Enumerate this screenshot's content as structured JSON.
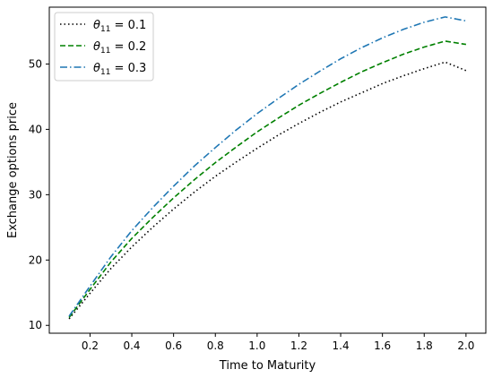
{
  "chart_data": {
    "type": "line",
    "xlabel": "Time to Maturity",
    "ylabel": "Exchange options price",
    "xlim": [
      0.005,
      2.095
    ],
    "ylim": [
      8.8,
      58.7
    ],
    "xticks": [
      "0.2",
      "0.4",
      "0.6",
      "0.8",
      "1.0",
      "1.2",
      "1.4",
      "1.6",
      "1.8",
      "2.0"
    ],
    "yticks": [
      "10",
      "20",
      "30",
      "40",
      "50"
    ],
    "grid": false,
    "legend_position": "top-left",
    "x": [
      0.1,
      0.2,
      0.3,
      0.4,
      0.5,
      0.6,
      0.7,
      0.8,
      0.9,
      1.0,
      1.1,
      1.2,
      1.3,
      1.4,
      1.5,
      1.6,
      1.7,
      1.8,
      1.9,
      2.0
    ],
    "series": [
      {
        "name_main": "θ",
        "name_sub": "11",
        "name_value": " = 0.1",
        "style": "dotted",
        "color": "#000000",
        "values": [
          11.0,
          14.9,
          18.7,
          22.0,
          25.0,
          27.8,
          30.4,
          32.8,
          35.0,
          37.1,
          39.1,
          40.9,
          42.6,
          44.2,
          45.6,
          47.0,
          48.2,
          49.3,
          50.3,
          49.0
        ]
      },
      {
        "name_main": "θ",
        "name_sub": "11",
        "name_value": " = 0.2",
        "style": "dashed",
        "color": "#008000",
        "values": [
          11.2,
          15.5,
          19.7,
          23.3,
          26.5,
          29.5,
          32.3,
          34.9,
          37.3,
          39.6,
          41.7,
          43.7,
          45.5,
          47.2,
          48.8,
          50.2,
          51.5,
          52.6,
          53.5,
          53.0
        ]
      },
      {
        "name_main": "θ",
        "name_sub": "11",
        "name_value": " = 0.3",
        "style": "dashdot",
        "color": "#1f77b4",
        "values": [
          11.4,
          16.0,
          20.5,
          24.5,
          28.0,
          31.3,
          34.4,
          37.2,
          39.9,
          42.4,
          44.7,
          46.9,
          48.9,
          50.8,
          52.5,
          54.0,
          55.3,
          56.4,
          57.2,
          56.6
        ]
      }
    ]
  }
}
